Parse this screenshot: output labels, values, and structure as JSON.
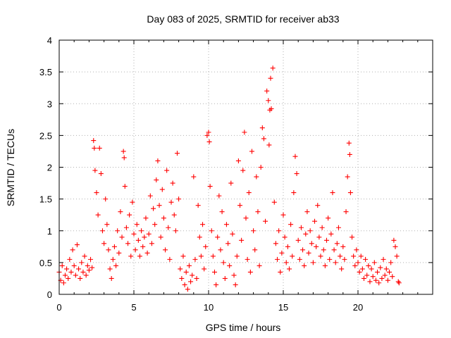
{
  "chart_data": {
    "type": "scatter",
    "title": "Day 083 of 2025, SRMTID for receiver ab33",
    "xlabel": "GPS time / hours",
    "ylabel": "SRMTID / TECUs",
    "xlim": [
      0,
      25
    ],
    "ylim": [
      0,
      4
    ],
    "xticks": [
      0,
      5,
      10,
      15,
      20
    ],
    "yticks": [
      0,
      0.5,
      1,
      1.5,
      2,
      2.5,
      3,
      3.5,
      4
    ],
    "xtick_labels": [
      "0",
      "5",
      "10",
      "15",
      "20"
    ],
    "ytick_labels": [
      "0",
      "0.5",
      "1",
      "1.5",
      "2",
      "2.5",
      "3",
      "3.5",
      "4"
    ],
    "grid": true,
    "marker": "+",
    "color": "#ff0000",
    "series": [
      {
        "name": "SRMTID",
        "points": [
          [
            0.0,
            0.35
          ],
          [
            0.1,
            0.22
          ],
          [
            0.2,
            0.45
          ],
          [
            0.3,
            0.18
          ],
          [
            0.4,
            0.3
          ],
          [
            0.5,
            0.4
          ],
          [
            0.6,
            0.25
          ],
          [
            0.7,
            0.55
          ],
          [
            0.8,
            0.35
          ],
          [
            0.9,
            0.7
          ],
          [
            1.0,
            0.45
          ],
          [
            1.1,
            0.3
          ],
          [
            1.2,
            0.78
          ],
          [
            1.3,
            0.4
          ],
          [
            1.4,
            0.25
          ],
          [
            1.5,
            0.5
          ],
          [
            1.6,
            0.35
          ],
          [
            1.7,
            0.6
          ],
          [
            1.8,
            0.3
          ],
          [
            1.9,
            0.45
          ],
          [
            2.0,
            0.38
          ],
          [
            2.1,
            0.55
          ],
          [
            2.2,
            0.42
          ],
          [
            2.3,
            2.42
          ],
          [
            2.35,
            2.3
          ],
          [
            2.4,
            1.95
          ],
          [
            2.5,
            1.6
          ],
          [
            2.6,
            1.25
          ],
          [
            2.7,
            2.3
          ],
          [
            2.8,
            1.9
          ],
          [
            2.9,
            1.0
          ],
          [
            3.0,
            0.8
          ],
          [
            3.1,
            1.5
          ],
          [
            3.2,
            1.1
          ],
          [
            3.3,
            0.7
          ],
          [
            3.4,
            0.4
          ],
          [
            3.5,
            0.25
          ],
          [
            3.6,
            0.55
          ],
          [
            3.7,
            0.75
          ],
          [
            3.8,
            0.45
          ],
          [
            3.9,
            1.0
          ],
          [
            4.0,
            0.65
          ],
          [
            4.1,
            1.3
          ],
          [
            4.2,
            0.9
          ],
          [
            4.3,
            2.25
          ],
          [
            4.35,
            2.15
          ],
          [
            4.4,
            1.7
          ],
          [
            4.5,
            1.05
          ],
          [
            4.6,
            0.8
          ],
          [
            4.7,
            1.25
          ],
          [
            4.8,
            0.6
          ],
          [
            4.9,
            1.45
          ],
          [
            5.0,
            0.95
          ],
          [
            5.1,
            0.7
          ],
          [
            5.2,
            1.1
          ],
          [
            5.3,
            0.85
          ],
          [
            5.4,
            0.6
          ],
          [
            5.5,
            1.0
          ],
          [
            5.6,
            0.75
          ],
          [
            5.7,
            0.9
          ],
          [
            5.8,
            1.2
          ],
          [
            5.9,
            0.65
          ],
          [
            6.0,
            0.95
          ],
          [
            6.1,
            1.55
          ],
          [
            6.2,
            0.8
          ],
          [
            6.3,
            1.35
          ],
          [
            6.4,
            1.1
          ],
          [
            6.5,
            1.8
          ],
          [
            6.6,
            2.1
          ],
          [
            6.7,
            1.4
          ],
          [
            6.8,
            0.9
          ],
          [
            6.9,
            1.65
          ],
          [
            7.0,
            1.2
          ],
          [
            7.1,
            0.7
          ],
          [
            7.2,
            1.95
          ],
          [
            7.3,
            1.05
          ],
          [
            7.4,
            0.55
          ],
          [
            7.5,
            1.45
          ],
          [
            7.6,
            1.75
          ],
          [
            7.7,
            1.25
          ],
          [
            7.8,
            1.0
          ],
          [
            7.9,
            2.22
          ],
          [
            8.0,
            1.5
          ],
          [
            8.1,
            0.4
          ],
          [
            8.2,
            0.25
          ],
          [
            8.3,
            0.6
          ],
          [
            8.4,
            0.15
          ],
          [
            8.5,
            0.35
          ],
          [
            8.6,
            0.08
          ],
          [
            8.7,
            0.45
          ],
          [
            8.8,
            0.2
          ],
          [
            8.9,
            0.3
          ],
          [
            9.0,
            1.85
          ],
          [
            9.1,
            0.55
          ],
          [
            9.2,
            0.25
          ],
          [
            9.3,
            1.4
          ],
          [
            9.4,
            0.9
          ],
          [
            9.5,
            0.6
          ],
          [
            9.6,
            1.1
          ],
          [
            9.7,
            0.4
          ],
          [
            9.8,
            0.75
          ],
          [
            9.9,
            2.5
          ],
          [
            10.0,
            2.55
          ],
          [
            10.05,
            2.4
          ],
          [
            10.1,
            1.7
          ],
          [
            10.2,
            1.0
          ],
          [
            10.3,
            0.6
          ],
          [
            10.4,
            0.35
          ],
          [
            10.5,
            0.15
          ],
          [
            10.6,
            0.9
          ],
          [
            10.7,
            1.55
          ],
          [
            10.8,
            0.7
          ],
          [
            10.9,
            1.3
          ],
          [
            11.0,
            0.5
          ],
          [
            11.1,
            0.25
          ],
          [
            11.2,
            1.1
          ],
          [
            11.3,
            0.8
          ],
          [
            11.4,
            0.45
          ],
          [
            11.5,
            1.75
          ],
          [
            11.6,
            0.95
          ],
          [
            11.7,
            0.3
          ],
          [
            11.8,
            0.15
          ],
          [
            11.9,
            0.6
          ],
          [
            12.0,
            2.1
          ],
          [
            12.1,
            1.4
          ],
          [
            12.2,
            0.85
          ],
          [
            12.3,
            1.95
          ],
          [
            12.4,
            2.55
          ],
          [
            12.5,
            1.2
          ],
          [
            12.6,
            0.55
          ],
          [
            12.7,
            1.6
          ],
          [
            12.8,
            0.35
          ],
          [
            12.9,
            2.25
          ],
          [
            13.0,
            1.0
          ],
          [
            13.1,
            0.7
          ],
          [
            13.2,
            1.85
          ],
          [
            13.3,
            1.3
          ],
          [
            13.4,
            0.45
          ],
          [
            13.5,
            2.0
          ],
          [
            13.6,
            2.62
          ],
          [
            13.7,
            2.45
          ],
          [
            13.8,
            1.15
          ],
          [
            13.9,
            3.2
          ],
          [
            14.0,
            3.05
          ],
          [
            14.05,
            2.35
          ],
          [
            14.1,
            2.9
          ],
          [
            14.15,
            3.4
          ],
          [
            14.2,
            2.92
          ],
          [
            14.3,
            3.56
          ],
          [
            14.4,
            1.45
          ],
          [
            14.5,
            0.8
          ],
          [
            14.6,
            0.55
          ],
          [
            14.7,
            1.0
          ],
          [
            14.8,
            0.35
          ],
          [
            14.9,
            0.65
          ],
          [
            15.0,
            1.25
          ],
          [
            15.1,
            0.9
          ],
          [
            15.2,
            0.5
          ],
          [
            15.3,
            0.75
          ],
          [
            15.4,
            0.4
          ],
          [
            15.5,
            1.1
          ],
          [
            15.6,
            0.6
          ],
          [
            15.7,
            1.6
          ],
          [
            15.8,
            2.17
          ],
          [
            15.9,
            1.9
          ],
          [
            16.0,
            0.85
          ],
          [
            16.1,
            0.55
          ],
          [
            16.2,
            1.05
          ],
          [
            16.3,
            0.7
          ],
          [
            16.4,
            0.45
          ],
          [
            16.5,
            0.95
          ],
          [
            16.6,
            1.3
          ],
          [
            16.7,
            0.65
          ],
          [
            16.8,
            1.0
          ],
          [
            16.9,
            0.8
          ],
          [
            17.0,
            0.5
          ],
          [
            17.1,
            1.15
          ],
          [
            17.2,
            0.75
          ],
          [
            17.3,
            1.4
          ],
          [
            17.4,
            0.9
          ],
          [
            17.5,
            0.6
          ],
          [
            17.6,
            1.05
          ],
          [
            17.7,
            0.7
          ],
          [
            17.8,
            0.45
          ],
          [
            17.9,
            0.85
          ],
          [
            18.0,
            1.2
          ],
          [
            18.1,
            0.55
          ],
          [
            18.2,
            0.95
          ],
          [
            18.3,
            1.6
          ],
          [
            18.4,
            0.7
          ],
          [
            18.5,
            0.5
          ],
          [
            18.6,
            0.8
          ],
          [
            18.7,
            1.05
          ],
          [
            18.8,
            0.6
          ],
          [
            18.9,
            0.4
          ],
          [
            19.0,
            0.75
          ],
          [
            19.1,
            0.55
          ],
          [
            19.2,
            1.3
          ],
          [
            19.3,
            1.85
          ],
          [
            19.4,
            2.38
          ],
          [
            19.45,
            2.2
          ],
          [
            19.5,
            1.6
          ],
          [
            19.6,
            0.9
          ],
          [
            19.7,
            0.6
          ],
          [
            19.8,
            0.45
          ],
          [
            19.9,
            0.7
          ],
          [
            20.0,
            0.5
          ],
          [
            20.1,
            0.35
          ],
          [
            20.2,
            0.6
          ],
          [
            20.3,
            0.4
          ],
          [
            20.4,
            0.25
          ],
          [
            20.5,
            0.55
          ],
          [
            20.6,
            0.3
          ],
          [
            20.7,
            0.45
          ],
          [
            20.8,
            0.2
          ],
          [
            20.9,
            0.4
          ],
          [
            21.0,
            0.28
          ],
          [
            21.1,
            0.5
          ],
          [
            21.2,
            0.22
          ],
          [
            21.3,
            0.35
          ],
          [
            21.4,
            0.18
          ],
          [
            21.5,
            0.42
          ],
          [
            21.6,
            0.25
          ],
          [
            21.7,
            0.55
          ],
          [
            21.8,
            0.3
          ],
          [
            21.9,
            0.4
          ],
          [
            22.0,
            0.22
          ],
          [
            22.1,
            0.35
          ],
          [
            22.2,
            0.5
          ],
          [
            22.3,
            0.28
          ],
          [
            22.4,
            0.85
          ],
          [
            22.5,
            0.75
          ],
          [
            22.6,
            0.6
          ],
          [
            22.7,
            0.2
          ],
          [
            22.75,
            0.18
          ]
        ]
      }
    ]
  }
}
